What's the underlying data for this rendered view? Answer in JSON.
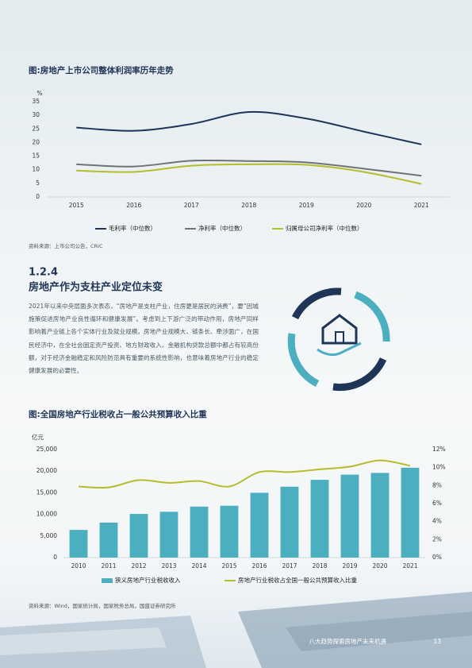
{
  "chart_data": [
    {
      "type": "line",
      "title": "图:房地产上市公司整体利润率历年走势",
      "ylabel": "%",
      "categories": [
        "2015",
        "2016",
        "2017",
        "2018",
        "2019",
        "2020",
        "2021"
      ],
      "series": [
        {
          "name": "毛利率（中位数）",
          "color": "#1f3557",
          "values": [
            25.5,
            24.3,
            26.8,
            31.2,
            28.8,
            24,
            19.3
          ]
        },
        {
          "name": "净利率（中位数）",
          "color": "#6f7377",
          "values": [
            12,
            11.2,
            13.3,
            13.2,
            12.7,
            10.4,
            7.8
          ]
        },
        {
          "name": "归属母公司净利率（中位数）",
          "color": "#b5bd2a",
          "values": [
            9.7,
            9.2,
            11.5,
            12,
            11.8,
            9.2,
            4.8
          ]
        }
      ],
      "ylim": [
        0,
        35
      ],
      "yticks": [
        0,
        5,
        10,
        15,
        20,
        25,
        30,
        35
      ],
      "grid": false,
      "source": "资料来源：上市公司公告，CRIC"
    },
    {
      "type": "bar",
      "title": "图:全国房地产行业税收占一般公共预算收入比重",
      "ylabel": "亿元",
      "categories": [
        "2010",
        "2011",
        "2012",
        "2013",
        "2014",
        "2015",
        "2016",
        "2017",
        "2018",
        "2019",
        "2020",
        "2021"
      ],
      "series": [
        {
          "name": "狭义房地产行业税收收入",
          "type": "bar",
          "color": "#4bafc0",
          "values": [
            6400,
            8100,
            10100,
            10600,
            11800,
            12000,
            15000,
            16400,
            18000,
            19200,
            19600,
            20800
          ]
        },
        {
          "name": "房地产行业税收占全国一般公共预算收入比重",
          "type": "line",
          "axis": "y2",
          "color": "#b5bd2a",
          "values": [
            7.9,
            7.8,
            8.6,
            8.3,
            8.5,
            7.9,
            9.5,
            9.5,
            9.8,
            10.1,
            10.8,
            10.2
          ]
        }
      ],
      "ylim": [
        0,
        25000
      ],
      "yticks": [
        0,
        {
          "value": 5000,
          "label": "5,000"
        },
        {
          "value": 10000,
          "label": "10,000"
        },
        {
          "value": 15000,
          "label": "15,000"
        },
        {
          "value": 20000,
          "label": "20,000"
        },
        {
          "value": 25000,
          "label": "25,000"
        }
      ],
      "y2lim": [
        0,
        12
      ],
      "y2ticks": [
        {
          "value": 0,
          "label": "0%"
        },
        {
          "value": 2,
          "label": "2%"
        },
        {
          "value": 4,
          "label": "4%"
        },
        {
          "value": 6,
          "label": "6%"
        },
        {
          "value": 8,
          "label": "8%"
        },
        {
          "value": 10,
          "label": "10%"
        },
        {
          "value": 12,
          "label": "12%"
        }
      ],
      "grid": false,
      "source": "资料来源：Wind，国家统计局，国家税务总局，国盛证券研究所"
    }
  ],
  "section": {
    "number": "1.2.4",
    "heading": "房地产作为支柱产业定位未变",
    "body": "2021年以来中央层面多次表态，“房地产是支柱产业，住房更是居民的消费”，要“因城施策促进房地产业良性循环和健康发展”。考虑到上下游广泛的带动作用，房地产同样影响着产业链上各个实体行业及就业规模。房地产业规模大、链条长、牵涉面广，在国民经济中，在全社会固定资产投资、地方财政收入、金融机构贷款总额中都占有较高份额，对于经济金融稳定和风险防范具有重要的系统性影响，也意味着房地产行业的稳定健康发展的必要性。"
  },
  "footer": {
    "text": "八大趋势探索房地产未来机遇",
    "page": "13"
  }
}
